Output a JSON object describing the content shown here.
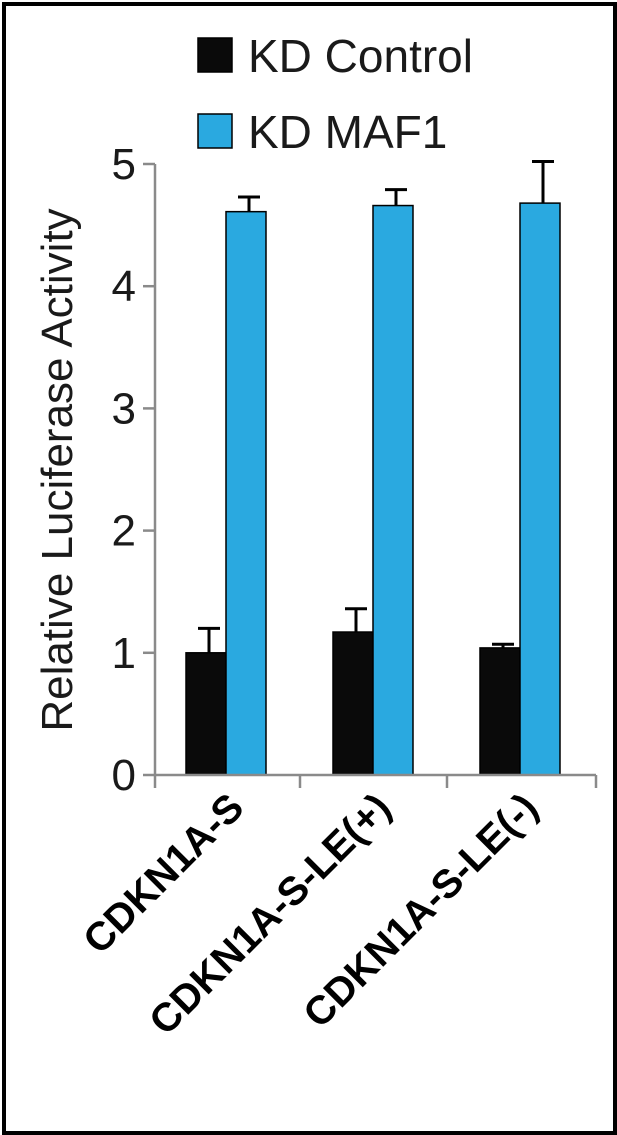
{
  "chart_data": {
    "type": "bar",
    "categories": [
      "CDKN1A-S",
      "CDKN1A-S-LE(+)",
      "CDKN1A-S-LE(-)"
    ],
    "series": [
      {
        "name": "KD Control",
        "color": "#0a0a0a",
        "values": [
          1.0,
          1.17,
          1.04
        ],
        "errors": [
          0.2,
          0.19,
          0.03
        ]
      },
      {
        "name": "KD MAF1",
        "color": "#2aa9e0",
        "values": [
          4.61,
          4.66,
          4.68
        ],
        "errors": [
          0.12,
          0.13,
          0.34
        ]
      }
    ],
    "ylabel": "Relative Luciferase Activity",
    "xlabel": "",
    "ylim": [
      0,
      5
    ],
    "yticks": [
      "0",
      "1",
      "2",
      "3",
      "4",
      "5"
    ],
    "grid": false,
    "legend_position": "top"
  }
}
